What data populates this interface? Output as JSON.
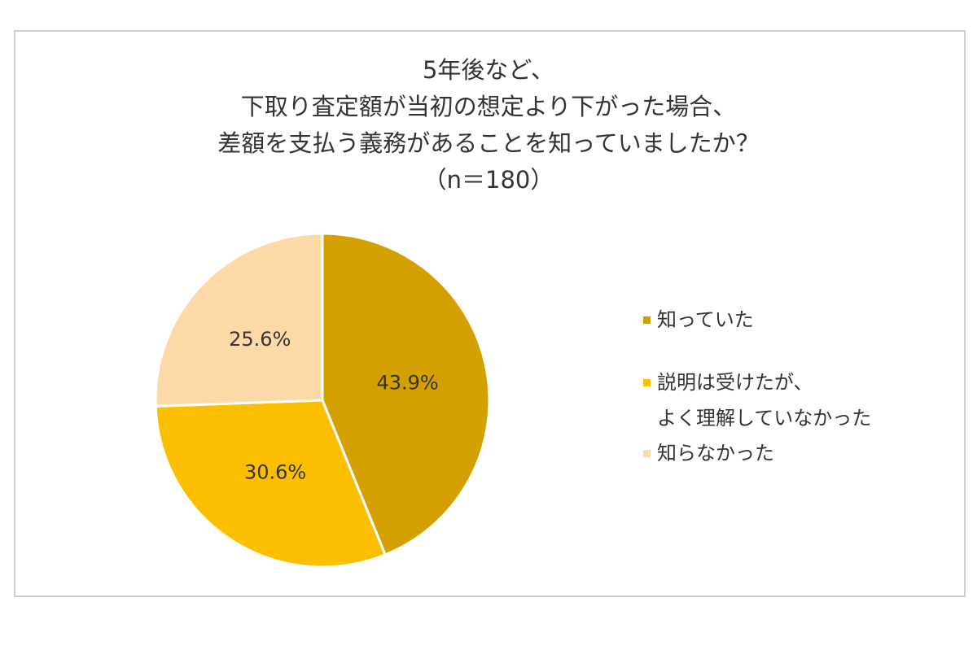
{
  "chart_data": {
    "type": "pie",
    "title": [
      "5年後など、",
      "下取り査定額が当初の想定より下がった場合、",
      "差額を支払う義務があることを知っていましたか？",
      "（n＝180）"
    ],
    "categories": [
      "知っていた",
      "説明は受けたが、\nよく理解していなかった",
      "知らなかった"
    ],
    "values": [
      43.9,
      30.6,
      25.6
    ],
    "value_labels": [
      "43.9%",
      "30.6%",
      "25.6%"
    ],
    "colors": [
      "#d4a000",
      "#fbbf00",
      "#fcd9a6"
    ],
    "legend": "right"
  }
}
